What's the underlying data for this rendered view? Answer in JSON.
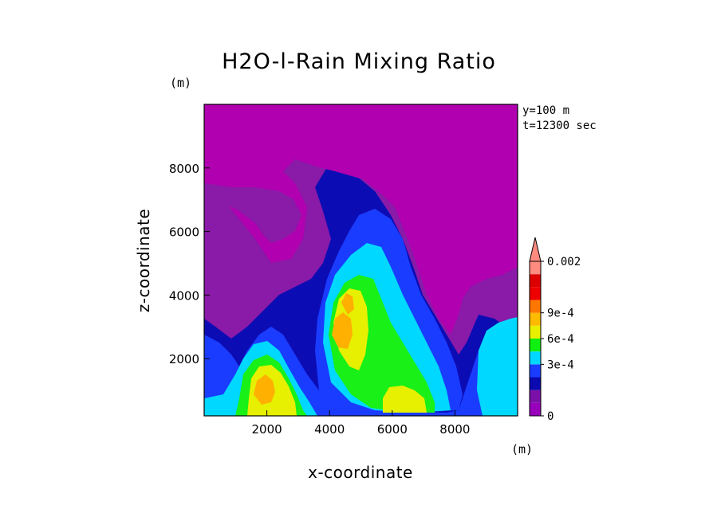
{
  "chart_data": {
    "type": "heatmap",
    "title": "H2O-l-Rain Mixing Ratio",
    "xlabel": "x-coordinate",
    "ylabel": "z-coordinate",
    "x_unit": "(m)",
    "y_unit": "(m)",
    "xlim": [
      0,
      10000
    ],
    "ylim": [
      200,
      10000
    ],
    "x_ticks": [
      2000,
      4000,
      6000,
      8000
    ],
    "x_tick_labels": [
      "2000",
      "4000",
      "6000",
      "8000"
    ],
    "y_ticks": [
      2000,
      4000,
      6000,
      8000
    ],
    "y_tick_labels": [
      "2000",
      "4000",
      "6000",
      "8000"
    ],
    "annotations": [
      "y=100 m",
      "t=12300 sec"
    ],
    "colorbar": {
      "labels": [
        {
          "text": "0.002",
          "level": 0.002
        },
        {
          "text": "9e-4",
          "level": 0.0009
        },
        {
          "text": "6e-4",
          "level": 0.0006
        },
        {
          "text": "3e-4",
          "level": 0.0003
        },
        {
          "text": "0",
          "level": 0
        }
      ],
      "bands": [
        {
          "color": "#9900bb"
        },
        {
          "color": "#7b10a8"
        },
        {
          "color": "#0a0ab0"
        },
        {
          "color": "#1a3cff"
        },
        {
          "color": "#00d8ff"
        },
        {
          "color": "#10f010"
        },
        {
          "color": "#e8f000"
        },
        {
          "color": "#ffbb00"
        },
        {
          "color": "#ff7700"
        },
        {
          "color": "#ee0000"
        },
        {
          "color": "#dd0000"
        },
        {
          "color": "#ff8a80"
        }
      ],
      "extend": "max"
    },
    "colors": {
      "level0": "#b000b0",
      "level1": "#8a1aa8",
      "level2": "#0c0cb4",
      "level3": "#1a3cff",
      "level4": "#00d8ff",
      "level5": "#18f018",
      "level6": "#e6f000",
      "level7": "#ffb000"
    }
  }
}
